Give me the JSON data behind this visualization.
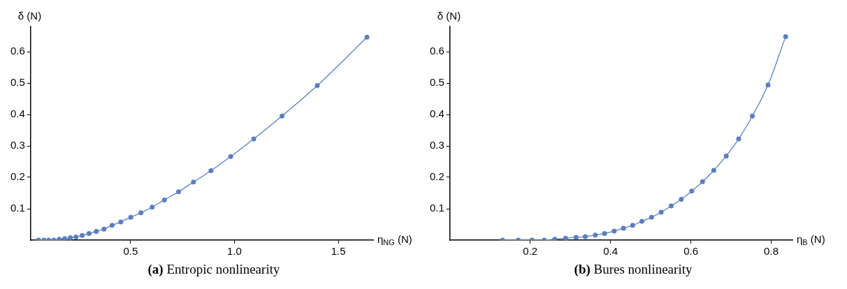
{
  "chart_data": [
    {
      "type": "line",
      "title": "(a) Entropic nonlinearity",
      "xlabel": "η$_{NG}$ (N)",
      "ylabel": "δ (N)",
      "xlim": [
        0.019,
        1.668
      ],
      "ylim": [
        0,
        0.68
      ],
      "xticks": [
        {
          "value": 0.5,
          "label": "0.5"
        },
        {
          "value": 1,
          "label": "1.0"
        },
        {
          "value": 1.5,
          "label": "1.5"
        }
      ],
      "yticks": [
        0.1,
        0.2,
        0.3,
        0.4,
        0.5,
        0.6
      ],
      "grid": false,
      "legend": false,
      "marker": "circle",
      "line_style": "solid",
      "series": [
        {
          "color": "#5b7fbd",
          "x": [
            0.057,
            0.083,
            0.106,
            0.131,
            0.156,
            0.183,
            0.21,
            0.237,
            0.267,
            0.3,
            0.335,
            0.372,
            0.411,
            0.453,
            0.501,
            0.55,
            0.604,
            0.663,
            0.731,
            0.803,
            0.887,
            0.982,
            1.093,
            1.229,
            1.399,
            1.638
          ],
          "values": [
            0,
            0,
            0,
            0,
            0.003,
            0.005,
            0.008,
            0.01,
            0.015,
            0.021,
            0.028,
            0.035,
            0.047,
            0.058,
            0.073,
            0.087,
            0.105,
            0.128,
            0.154,
            0.185,
            0.221,
            0.266,
            0.322,
            0.395,
            0.492,
            0.646
          ]
        }
      ]
    },
    {
      "type": "line",
      "title": "(b) Bures nonlinearity",
      "xlabel": "η$_{B}$ (N)",
      "ylabel": "δ (N)",
      "xlim": [
        0,
        0.853
      ],
      "ylim": [
        0,
        0.68
      ],
      "xticks": [
        0.2,
        0.4,
        0.6,
        0.8
      ],
      "yticks": [
        0.1,
        0.2,
        0.3,
        0.4,
        0.5,
        0.6
      ],
      "grid": false,
      "legend": false,
      "marker": "circle",
      "line_style": "solid",
      "series": [
        {
          "color": "#5b7fbd",
          "x": [
            0.131,
            0.17,
            0.204,
            0.235,
            0.261,
            0.288,
            0.314,
            0.337,
            0.362,
            0.385,
            0.409,
            0.432,
            0.455,
            0.478,
            0.502,
            0.526,
            0.551,
            0.576,
            0.602,
            0.629,
            0.657,
            0.688,
            0.719,
            0.753,
            0.792,
            0.836
          ],
          "values": [
            0,
            0,
            0,
            0,
            0.003,
            0.006,
            0.009,
            0.011,
            0.016,
            0.021,
            0.029,
            0.038,
            0.047,
            0.06,
            0.073,
            0.089,
            0.109,
            0.13,
            0.156,
            0.186,
            0.222,
            0.268,
            0.322,
            0.395,
            0.494,
            0.648
          ]
        }
      ]
    }
  ]
}
